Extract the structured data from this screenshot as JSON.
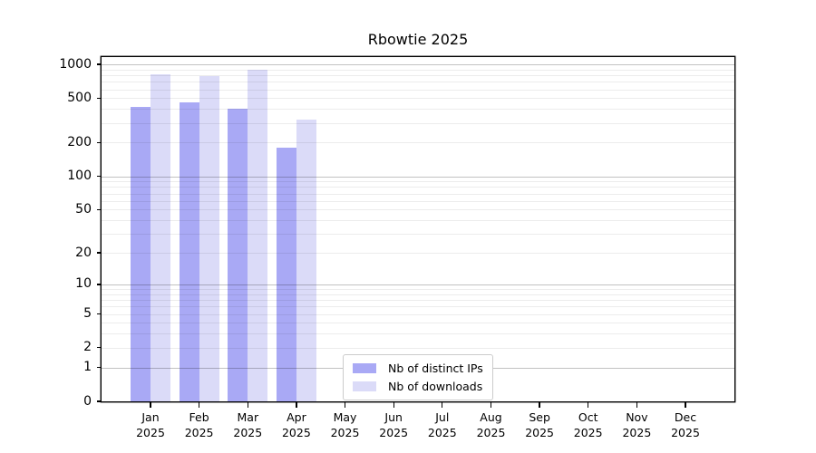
{
  "chart_data": {
    "type": "bar",
    "title": "Rbowtie 2025",
    "scale": "log1p",
    "ylim": [
      0,
      1160
    ],
    "grid_on": true,
    "legend_position": "bottom-center-inside",
    "categories": [
      "Jan",
      "Feb",
      "Mar",
      "Apr",
      "May",
      "Jun",
      "Jul",
      "Aug",
      "Sep",
      "Oct",
      "Nov",
      "Dec"
    ],
    "category_year": "2025",
    "series": [
      {
        "name": "Nb of distinct IPs",
        "color": "#a9a9f5",
        "values": [
          420,
          460,
          400,
          180,
          null,
          null,
          null,
          null,
          null,
          null,
          null,
          null
        ]
      },
      {
        "name": "Nb of downloads",
        "color": "#dbdbf8",
        "values": [
          820,
          790,
          890,
          320,
          null,
          null,
          null,
          null,
          null,
          null,
          null,
          null
        ]
      }
    ],
    "y_ticks": [
      0,
      1,
      2,
      5,
      10,
      20,
      50,
      100,
      200,
      500,
      1000
    ],
    "grid": {
      "major": [
        1,
        10,
        100,
        1000
      ],
      "minor": [
        2,
        3,
        4,
        5,
        6,
        7,
        8,
        9,
        20,
        30,
        40,
        50,
        60,
        70,
        80,
        90,
        200,
        300,
        400,
        500,
        600,
        700,
        800,
        900
      ]
    }
  }
}
